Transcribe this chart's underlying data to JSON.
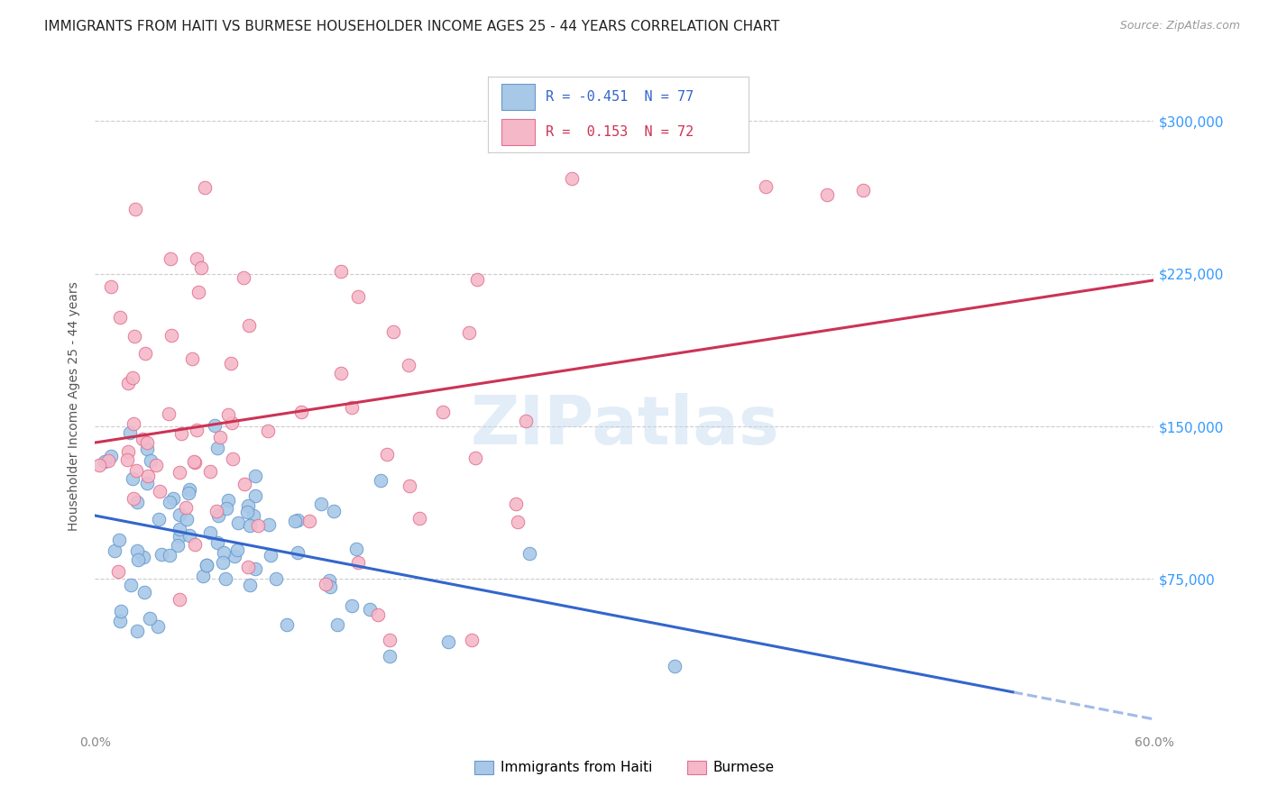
{
  "title": "IMMIGRANTS FROM HAITI VS BURMESE HOUSEHOLDER INCOME AGES 25 - 44 YEARS CORRELATION CHART",
  "source": "Source: ZipAtlas.com",
  "ylabel": "Householder Income Ages 25 - 44 years",
  "ytick_values": [
    75000,
    150000,
    225000,
    300000
  ],
  "ymin": 0,
  "ymax": 320000,
  "xmin": 0.0,
  "xmax": 0.6,
  "haiti_color": "#a8c8e8",
  "haiti_edge": "#6699cc",
  "burmese_color": "#f5b8c8",
  "burmese_edge": "#e07090",
  "haiti_line_color": "#3366cc",
  "burmese_line_color": "#cc3355",
  "haiti_R": -0.451,
  "haiti_N": 77,
  "burmese_R": 0.153,
  "burmese_N": 72,
  "bottom_legend_haiti": "Immigrants from Haiti",
  "bottom_legend_burmese": "Burmese",
  "watermark": "ZIPatlas",
  "background_color": "#ffffff",
  "title_fontsize": 11,
  "axis_label_fontsize": 10,
  "tick_fontsize": 10,
  "seed": 42
}
